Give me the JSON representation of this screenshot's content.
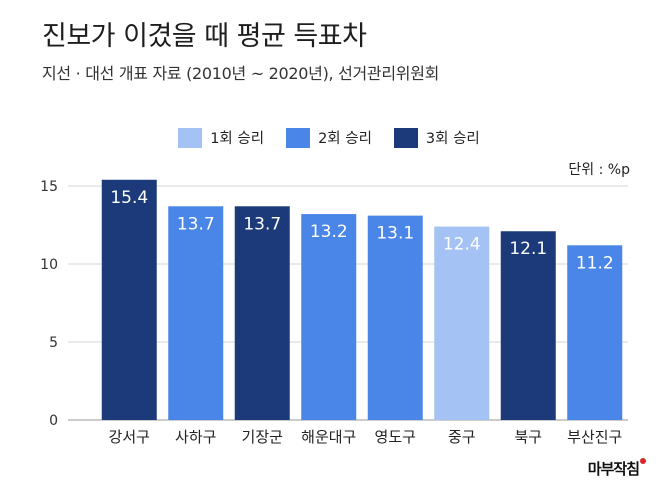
{
  "header": {
    "title": "진보가 이겼을 때 평균 득표차",
    "subtitle": "지선 · 대선 개표 자료 (2010년 ~ 2020년), 선거관리위원회",
    "unit": "단위 : %p",
    "logo": "마부작침"
  },
  "colors": {
    "win1": "#a4c2f4",
    "win2": "#4a86e8",
    "win3": "#1c3a7a",
    "grid": "#d6d6d6"
  },
  "legend": [
    {
      "label": "1회 승리",
      "group": "win1"
    },
    {
      "label": "2회 승리",
      "group": "win2"
    },
    {
      "label": "3회 승리",
      "group": "win3"
    }
  ],
  "chart_data": {
    "type": "bar",
    "title": "진보가 이겼을 때 평균 득표차",
    "xlabel": "",
    "ylabel": "",
    "ylim": [
      0,
      15
    ],
    "yticks": [
      0,
      5,
      10,
      15
    ],
    "grid": true,
    "legend_position": "top-center",
    "categories": [
      "강서구",
      "사하구",
      "기장군",
      "해운대구",
      "영도구",
      "중구",
      "북구",
      "부산진구"
    ],
    "values": [
      15.4,
      13.7,
      13.7,
      13.2,
      13.1,
      12.4,
      12.1,
      11.2
    ],
    "value_labels": [
      "15.4",
      "13.7",
      "13.7",
      "13.2",
      "13.1",
      "12.4",
      "12.1",
      "11.2"
    ],
    "groups": [
      "win3",
      "win2",
      "win3",
      "win2",
      "win2",
      "win1",
      "win3",
      "win2"
    ]
  }
}
